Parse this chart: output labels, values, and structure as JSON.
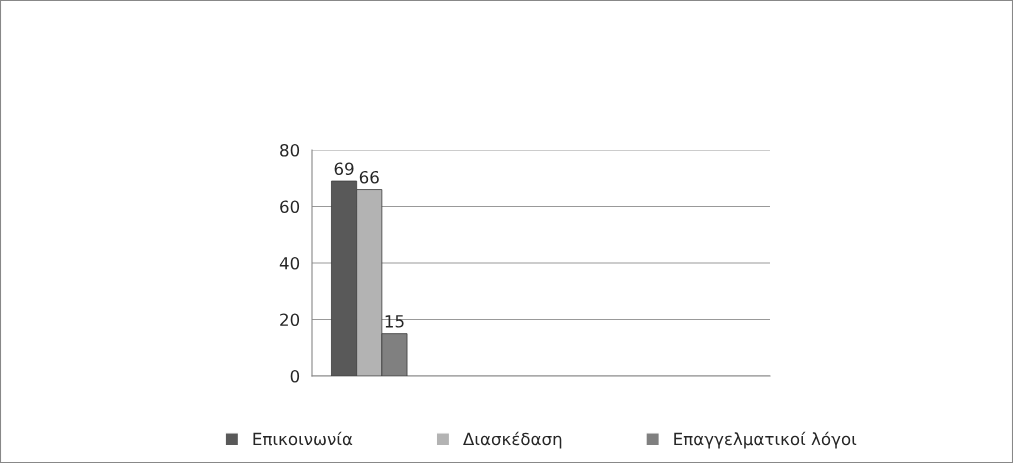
{
  "chart_data": {
    "type": "bar",
    "categories": [
      null,
      null,
      null,
      null
    ],
    "series": [
      {
        "name": "Επικοινωνία",
        "color": "#595959",
        "values": [
          69,
          null,
          null,
          null
        ]
      },
      {
        "name": "Διασκέδαση",
        "color": "#b3b3b3",
        "values": [
          66,
          null,
          null,
          null
        ]
      },
      {
        "name": "Επαγγελματικοί λόγοι",
        "color": "#808080",
        "values": [
          15,
          null,
          null,
          null
        ]
      }
    ],
    "ylim": [
      0,
      80
    ],
    "yticks": [
      0,
      20,
      40,
      60,
      80
    ],
    "grid": "y",
    "legend": "bottom",
    "data_labels": true
  }
}
